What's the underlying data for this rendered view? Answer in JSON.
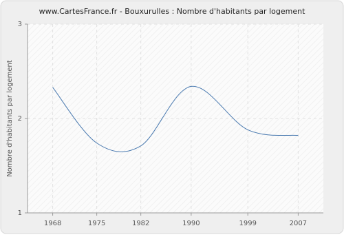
{
  "chart_data": {
    "type": "line",
    "title": "www.CartesFrance.fr - Bouxurulles : Nombre d'habitants par logement",
    "y_label": "Nombre d'habitants par logement",
    "x": [
      1968,
      1975,
      1982,
      1990,
      1999,
      2007
    ],
    "series": [
      {
        "name": "Nombre d'habitants par logement",
        "color": "#4a7ab0",
        "values": [
          2.33,
          1.74,
          1.71,
          2.34,
          1.88,
          1.82
        ]
      }
    ],
    "xlim": [
      1964,
      2011
    ],
    "xticks": [
      1968,
      1975,
      1982,
      1990,
      1999,
      2007
    ],
    "ylim": [
      1,
      3
    ],
    "yticks": [
      1,
      2,
      3
    ],
    "grid": true
  }
}
